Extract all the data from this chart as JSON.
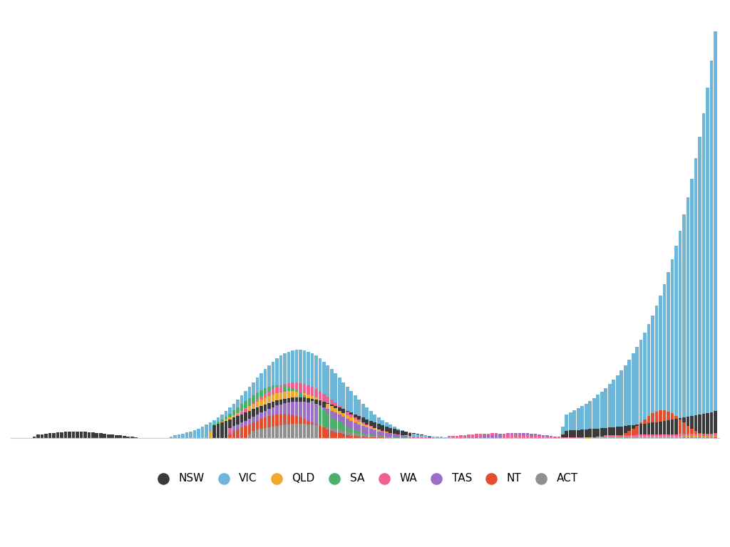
{
  "states": [
    "NSW",
    "VIC",
    "QLD",
    "SA",
    "WA",
    "TAS",
    "NT",
    "ACT"
  ],
  "colors": [
    "#3a3a3a",
    "#6eb6d8",
    "#f0a830",
    "#4caf6a",
    "#f06090",
    "#9b6ec8",
    "#e05030",
    "#909090"
  ],
  "background_color": "#ffffff"
}
